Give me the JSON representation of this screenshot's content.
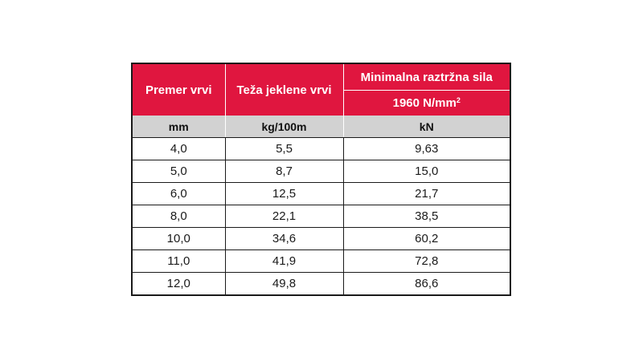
{
  "table": {
    "headers": {
      "col1": "Premer vrvi",
      "col2": "Teža jeklene vrvi",
      "col3": "Minimalna raztržna sila",
      "col3_sub_base": "1960 N/mm",
      "col3_sub_sup": "2"
    },
    "units": [
      "mm",
      "kg/100m",
      "kN"
    ],
    "rows": [
      [
        "4,0",
        "5,5",
        "9,63"
      ],
      [
        "5,0",
        "8,7",
        "15,0"
      ],
      [
        "6,0",
        "12,5",
        "21,7"
      ],
      [
        "8,0",
        "22,1",
        "38,5"
      ],
      [
        "10,0",
        "34,6",
        "60,2"
      ],
      [
        "11,0",
        "41,9",
        "72,8"
      ],
      [
        "12,0",
        "49,8",
        "86,6"
      ]
    ],
    "colors": {
      "header_bg": "#e0163f",
      "units_bg": "#d2d2d2",
      "border": "#1a1a1a"
    }
  }
}
